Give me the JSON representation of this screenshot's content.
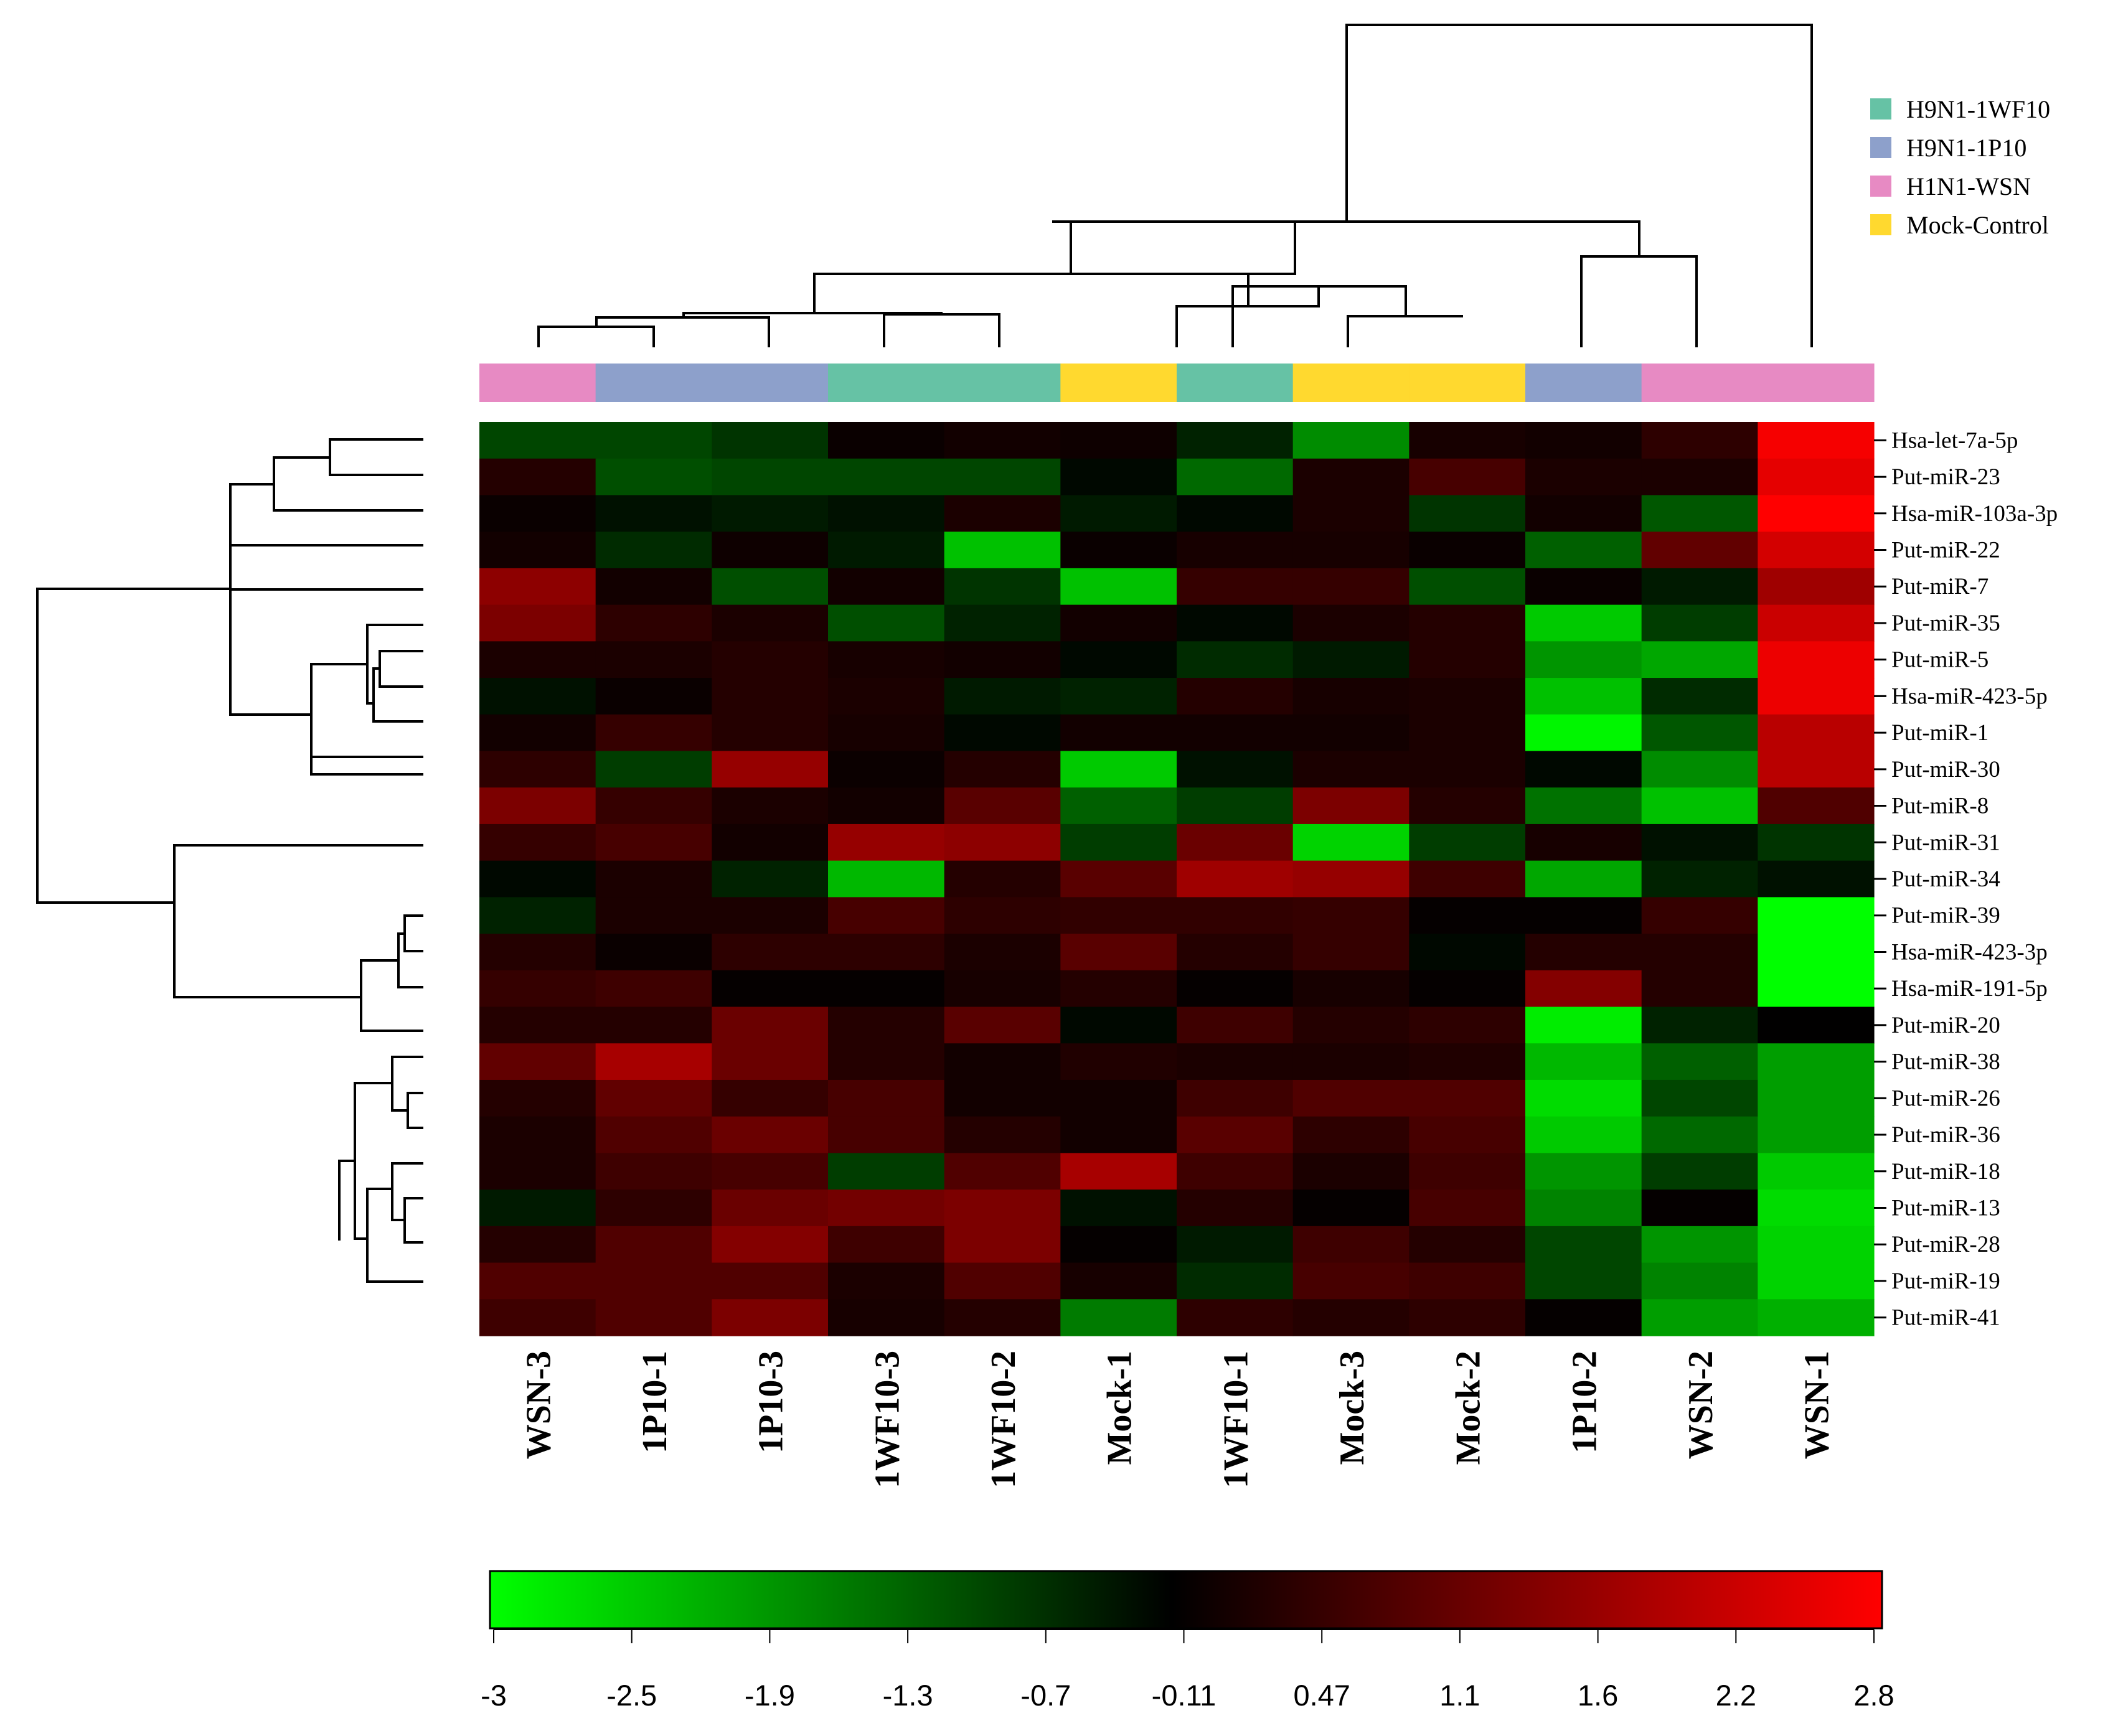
{
  "chart_data": {
    "type": "heatmap",
    "title": "",
    "columns": [
      "WSN-3",
      "1P10-1",
      "1P10-3",
      "1WF10-3",
      "1WF10-2",
      "Mock-1",
      "1WF10-1",
      "Mock-3",
      "Mock-2",
      "1P10-2",
      "WSN-2",
      "WSN-1"
    ],
    "column_groups": [
      "H1N1-WSN",
      "H9N1-1P10",
      "H9N1-1P10",
      "H9N1-1WF10",
      "H9N1-1WF10",
      "Mock-Control",
      "H9N1-1WF10",
      "Mock-Control",
      "Mock-Control",
      "H9N1-1P10",
      "H1N1-WSN",
      "H1N1-WSN"
    ],
    "rows": [
      "Hsa-let-7a-5p",
      "Put-miR-23",
      "Hsa-miR-103a-3p",
      "Put-miR-22",
      "Put-miR-7",
      "Put-miR-35",
      "Put-miR-5",
      "Hsa-miR-423-5p",
      "Put-miR-1",
      "Put-miR-30",
      "Put-miR-8",
      "Put-miR-31",
      "Put-miR-34",
      "Put-miR-39",
      "Hsa-miR-423-3p",
      "Hsa-miR-191-5p",
      "Put-miR-20",
      "Put-miR-38",
      "Put-miR-26",
      "Put-miR-36",
      "Put-miR-18",
      "Put-miR-13",
      "Put-miR-28",
      "Put-miR-19",
      "Put-miR-41"
    ],
    "values": [
      [
        -0.9,
        -0.9,
        -0.7,
        0.0,
        0.1,
        0.05,
        -0.5,
        -1.7,
        0.15,
        0.1,
        0.4,
        2.7
      ],
      [
        0.3,
        -1.0,
        -0.9,
        -0.9,
        -0.9,
        -0.2,
        -1.3,
        0.2,
        0.7,
        0.2,
        0.2,
        2.5
      ],
      [
        0.0,
        -0.3,
        -0.4,
        -0.3,
        0.2,
        -0.4,
        -0.2,
        0.2,
        -0.7,
        0.1,
        -1.1,
        2.8
      ],
      [
        0.1,
        -0.6,
        0.05,
        -0.4,
        -2.3,
        0.0,
        0.15,
        0.15,
        0.0,
        -1.2,
        1.0,
        2.3
      ],
      [
        1.5,
        0.1,
        -1.0,
        0.1,
        -0.7,
        -2.3,
        0.5,
        0.5,
        -1.0,
        0.0,
        -0.4,
        1.7
      ],
      [
        1.3,
        0.4,
        0.2,
        -1.0,
        -0.5,
        0.1,
        -0.2,
        0.2,
        0.3,
        -2.4,
        -0.8,
        2.2
      ],
      [
        0.2,
        0.2,
        0.3,
        0.15,
        0.1,
        -0.2,
        -0.6,
        -0.4,
        0.3,
        -1.8,
        -2.0,
        2.6
      ],
      [
        -0.3,
        0.0,
        0.3,
        0.2,
        -0.4,
        -0.5,
        0.3,
        0.15,
        0.2,
        -2.3,
        -0.6,
        2.6
      ],
      [
        0.1,
        0.5,
        0.3,
        0.15,
        -0.2,
        0.1,
        0.1,
        0.1,
        0.2,
        -2.9,
        -1.1,
        2.0
      ],
      [
        0.4,
        -0.8,
        1.6,
        0.02,
        0.3,
        -2.4,
        -0.3,
        0.2,
        0.2,
        -0.2,
        -1.7,
        2.0
      ],
      [
        1.3,
        0.5,
        0.2,
        0.1,
        0.9,
        -1.2,
        -0.8,
        1.3,
        0.3,
        -1.4,
        -2.3,
        0.8
      ],
      [
        0.5,
        0.7,
        0.1,
        1.6,
        1.5,
        -0.8,
        1.1,
        -2.5,
        -0.8,
        0.15,
        -0.3,
        -0.7
      ],
      [
        -0.2,
        0.2,
        -0.5,
        -2.2,
        0.3,
        0.9,
        1.7,
        1.6,
        0.6,
        -2.0,
        -0.5,
        -0.3
      ],
      [
        -0.5,
        0.2,
        0.2,
        0.7,
        0.4,
        0.45,
        0.45,
        0.5,
        -0.05,
        -0.05,
        0.5,
        -3.0
      ],
      [
        0.3,
        0.0,
        0.4,
        0.4,
        0.2,
        0.9,
        0.3,
        0.5,
        -0.2,
        0.3,
        0.3,
        -3.0
      ],
      [
        0.5,
        0.6,
        -0.05,
        -0.05,
        0.15,
        0.3,
        -0.05,
        0.15,
        -0.05,
        1.4,
        0.3,
        -3.0
      ],
      [
        0.3,
        0.3,
        1.1,
        0.3,
        0.9,
        -0.2,
        0.6,
        0.3,
        0.4,
        -2.8,
        -0.5,
        -0.1
      ],
      [
        1.0,
        1.8,
        1.1,
        0.3,
        0.1,
        0.25,
        0.2,
        0.2,
        0.25,
        -2.2,
        -1.2,
        -1.9
      ],
      [
        0.3,
        1.0,
        0.5,
        0.7,
        0.1,
        0.1,
        0.6,
        0.8,
        0.8,
        -2.6,
        -0.9,
        -1.9
      ],
      [
        0.2,
        0.8,
        1.1,
        0.7,
        0.3,
        0.1,
        0.9,
        0.4,
        0.7,
        -2.4,
        -1.3,
        -1.9
      ],
      [
        0.2,
        0.6,
        0.7,
        -0.8,
        0.8,
        1.8,
        0.6,
        0.2,
        0.6,
        -1.8,
        -0.8,
        -2.4
      ],
      [
        -0.4,
        0.4,
        1.1,
        1.2,
        1.3,
        -0.3,
        0.3,
        -0.05,
        0.7,
        -1.6,
        -0.05,
        -2.6
      ],
      [
        0.3,
        0.8,
        1.4,
        0.6,
        1.3,
        -0.05,
        -0.4,
        0.6,
        0.3,
        -0.9,
        -1.8,
        -2.5
      ],
      [
        0.8,
        0.8,
        0.8,
        0.2,
        0.8,
        0.15,
        -0.6,
        0.7,
        0.6,
        -0.9,
        -1.6,
        -2.5
      ],
      [
        0.6,
        0.8,
        1.3,
        0.15,
        0.3,
        -1.5,
        0.4,
        0.3,
        0.4,
        -0.05,
        -1.9,
        -2.1
      ]
    ],
    "color_scale": {
      "ticks": [
        "-3",
        "-2.5",
        "-1.9",
        "-1.3",
        "-0.7",
        "-0.11",
        "0.47",
        "1.1",
        "1.6",
        "2.2",
        "2.8"
      ],
      "range": [
        -3,
        2.8
      ],
      "low_color": "#00ff00",
      "mid_color": "#000000",
      "high_color": "#ff0000",
      "mid_value": -0.11
    },
    "legend": {
      "placement": "top-right",
      "items": [
        {
          "label": "H9N1-1WF10",
          "color": "#66c2a5"
        },
        {
          "label": "H9N1-1P10",
          "color": "#8da0cb"
        },
        {
          "label": "H1N1-WSN",
          "color": "#e78ac3"
        },
        {
          "label": "Mock-Control",
          "color": "#ffd92f"
        }
      ]
    },
    "column_dendrogram_order": [
      "WSN-3",
      "1P10-1",
      "1P10-3",
      "1WF10-3",
      "1WF10-2",
      "Mock-1",
      "1WF10-1",
      "Mock-3",
      "Mock-2",
      "1P10-2",
      "WSN-2",
      "WSN-1"
    ],
    "row_dendrogram_order": [
      "Hsa-let-7a-5p",
      "Put-miR-23",
      "Hsa-miR-103a-3p",
      "Put-miR-22",
      "Put-miR-7",
      "Put-miR-35",
      "Put-miR-5",
      "Hsa-miR-423-5p",
      "Put-miR-1",
      "Put-miR-30",
      "Put-miR-8",
      "Put-miR-31",
      "Put-miR-34",
      "Put-miR-39",
      "Hsa-miR-423-3p",
      "Hsa-miR-191-5p",
      "Put-miR-20",
      "Put-miR-38",
      "Put-miR-26",
      "Put-miR-36",
      "Put-miR-18",
      "Put-miR-13",
      "Put-miR-28",
      "Put-miR-19",
      "Put-miR-41"
    ]
  }
}
